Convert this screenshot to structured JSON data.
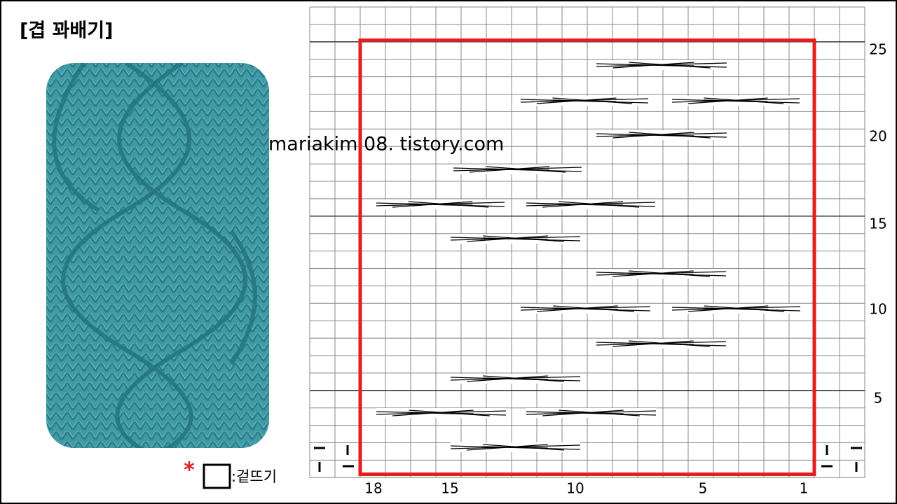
{
  "title": "[겹 꽈배기]",
  "watermark": "mariakim 08. tistory.com",
  "row_numbers": [
    "25",
    "20",
    "15",
    "10",
    "5"
  ],
  "column_numbers": [
    "18",
    "15",
    "10",
    "5",
    "1"
  ],
  "legend": {
    "marker": "*",
    "label": ":겉뜨기"
  }
}
